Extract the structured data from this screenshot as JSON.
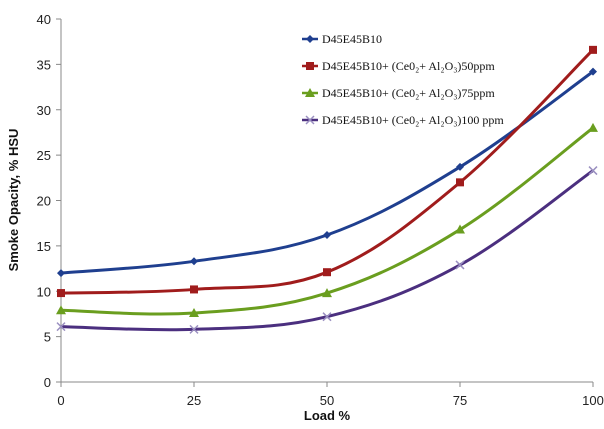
{
  "chart_data": {
    "type": "line",
    "title": "",
    "xlabel": "Load %",
    "ylabel": "Smoke Opacity, % HSU",
    "x": [
      0,
      25,
      50,
      75,
      100
    ],
    "xlim": [
      0,
      100
    ],
    "ylim": [
      0,
      40
    ],
    "yticks": [
      0,
      5,
      10,
      15,
      20,
      25,
      30,
      35,
      40
    ],
    "grid": false,
    "legend_position": "top-right",
    "series": [
      {
        "name": "D45E45B10",
        "values": [
          12.0,
          13.3,
          16.2,
          23.7,
          34.2
        ],
        "color": "#1f3f8f",
        "marker": "diamond"
      },
      {
        "name": "D45E45B10+ (Ce0₂+ Al₂O₃)50ppm",
        "values": [
          9.8,
          10.2,
          12.1,
          22.0,
          36.6
        ],
        "color": "#a01c1c",
        "marker": "square"
      },
      {
        "name": "D45E45B10+ (Ce0₂+ Al₂O₃)75ppm",
        "values": [
          7.9,
          7.6,
          9.8,
          16.8,
          28.0
        ],
        "color": "#6a9e1f",
        "marker": "triangle"
      },
      {
        "name": "D45E45B10+ (Ce0₂+ Al₂O₃)100 ppm",
        "values": [
          6.1,
          5.8,
          7.2,
          12.9,
          23.3
        ],
        "color": "#4b2f7f",
        "marker": "x"
      }
    ]
  }
}
